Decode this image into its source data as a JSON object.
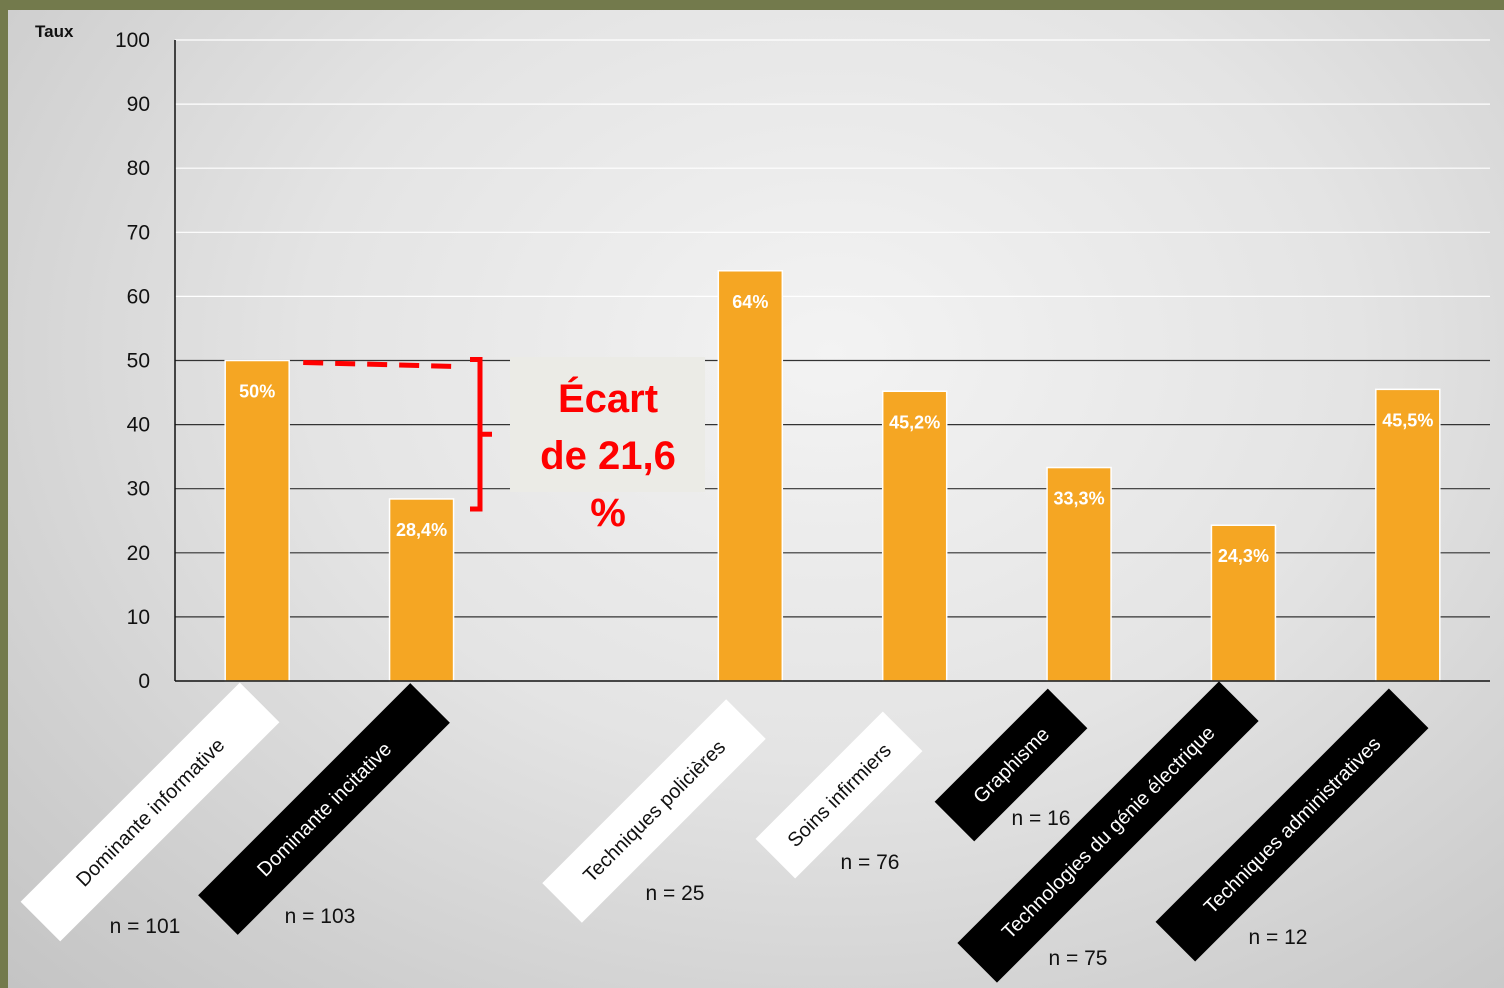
{
  "chart_data": {
    "type": "bar",
    "ylabel": "Taux",
    "ylim": [
      0,
      100
    ],
    "yticks": [
      0,
      10,
      20,
      30,
      40,
      50,
      60,
      70,
      80,
      90,
      100
    ],
    "grid": true,
    "categories": [
      "Dominante informative",
      "Dominante incitative",
      "",
      "Techniques policières",
      "Soins infirmiers",
      "Graphisme",
      "Technologies du génie électrique",
      "Techniques administratives"
    ],
    "values": [
      50,
      28.4,
      null,
      64,
      45.2,
      33.3,
      24.3,
      45.5
    ],
    "data_labels": [
      "50%",
      "28,4%",
      "",
      "64%",
      "45,2%",
      "33,3%",
      "24,3%",
      "45,5%"
    ],
    "sample_sizes": [
      "n = 101",
      "n = 103",
      "",
      "n = 25",
      "n = 76",
      "n = 16",
      "n = 75",
      "n = 12"
    ],
    "label_styles": [
      "white",
      "black",
      "",
      "white",
      "white",
      "black",
      "black",
      "black"
    ],
    "annotation": {
      "text_lines": [
        "Écart",
        "de 21,6",
        "%"
      ],
      "from_value": 50,
      "to_value": 28.4,
      "color": "#ff0000"
    },
    "bar_color": "#f5a623"
  }
}
